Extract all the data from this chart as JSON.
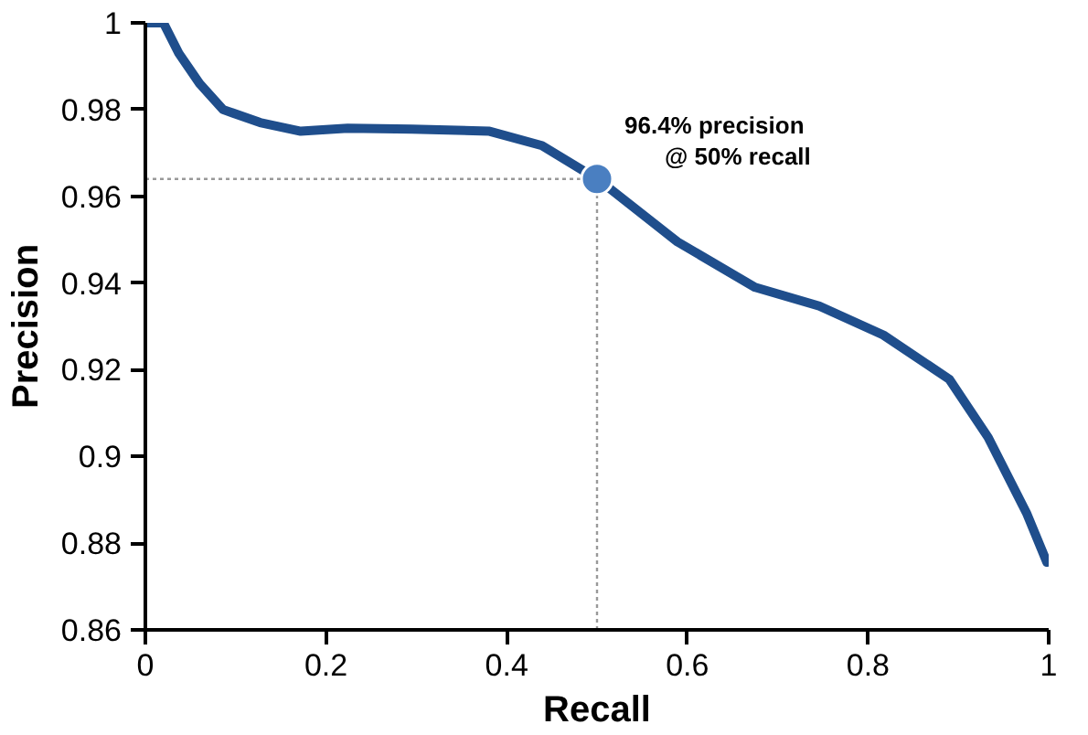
{
  "chart_data": {
    "type": "line",
    "xlabel": "Recall",
    "ylabel": "Precision",
    "xlim": [
      0,
      1
    ],
    "ylim": [
      0.86,
      1
    ],
    "xticks": [
      0,
      0.2,
      0.4,
      0.6,
      0.8,
      1
    ],
    "yticks": [
      0.86,
      0.88,
      0.9,
      0.92,
      0.94,
      0.96,
      0.98,
      1
    ],
    "grid": false,
    "series": [
      {
        "color": "#1f4e8c",
        "x": [
          0,
          0.02,
          0.037,
          0.06,
          0.086,
          0.127,
          0.172,
          0.224,
          0.295,
          0.381,
          0.439,
          0.503,
          0.589,
          0.675,
          0.746,
          0.817,
          0.89,
          0.933,
          0.976,
          0.998
        ],
        "values": [
          1,
          1,
          0.993,
          0.986,
          0.98,
          0.977,
          0.975,
          0.9757,
          0.9755,
          0.975,
          0.9717,
          0.9636,
          0.9495,
          0.939,
          0.9347,
          0.928,
          0.9178,
          0.9044,
          0.8867,
          0.8756
        ]
      },
      {
        "type": "scatter",
        "color": "#4a7fc1",
        "marker": "circle",
        "x": [
          0.5
        ],
        "values": [
          0.964
        ]
      }
    ],
    "ref_lines": [
      {
        "axis": "x",
        "value": 0.5,
        "color": "#999999",
        "line_style": "dotted"
      },
      {
        "axis": "y",
        "value": 0.964,
        "color": "#999999",
        "line_style": "dotted"
      }
    ],
    "annotations": [
      {
        "text": "96.4% precision\n@ 50% recall",
        "x": 0.5,
        "y": 0.964
      }
    ]
  }
}
